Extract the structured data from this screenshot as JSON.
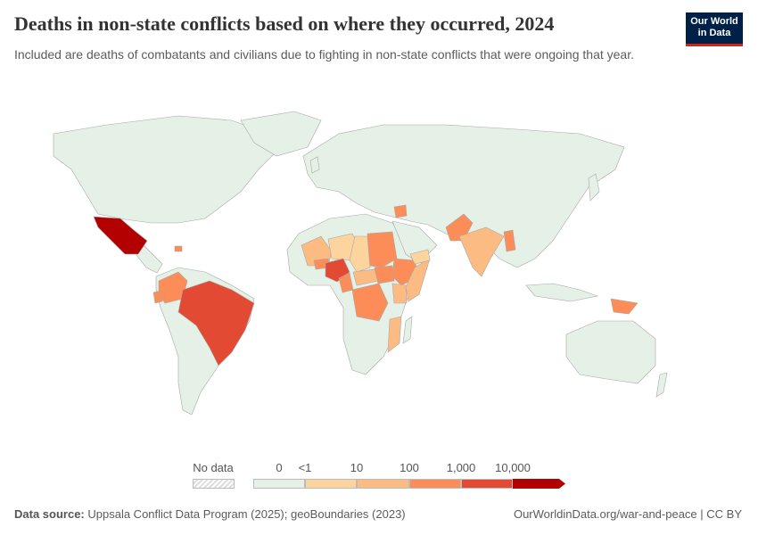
{
  "header": {
    "title": "Deaths in non-state conflicts based on where they occurred, 2024",
    "subtitle": "Included are deaths of combatants and civilians due to fighting in non-state conflicts that were ongoing that year.",
    "logo_text": "Our World in Data"
  },
  "chart_data": {
    "type": "choropleth",
    "year": 2024,
    "legend": {
      "no_data_label": "No data",
      "tick_labels": [
        "0",
        "<1",
        "10",
        "100",
        "1,000",
        "10,000"
      ],
      "bins": [
        {
          "range": "0",
          "color": "#e5f0e6"
        },
        {
          "range": "<1–10",
          "color": "#fdd49e"
        },
        {
          "range": "10–100",
          "color": "#fdbb84"
        },
        {
          "range": "100–1,000",
          "color": "#fc8d59"
        },
        {
          "range": "1,000–10,000",
          "color": "#e34a33"
        },
        {
          "range": ">10,000",
          "color": "#b30000"
        }
      ]
    },
    "country_bins": {
      "Mexico": 5,
      "Brazil": 4,
      "Nigeria": 4,
      "Colombia": 3,
      "Haiti": 3,
      "Sudan": 3,
      "South Sudan": 3,
      "Ethiopia": 3,
      "DR Congo": 3,
      "Pakistan": 3,
      "Syria": 3,
      "Papua New Guinea": 3,
      "Myanmar": 3,
      "Burkina Faso": 3,
      "Cameroon": 3,
      "Mali": 2,
      "Niger": 1,
      "Chad": 1,
      "Central African Republic": 2,
      "Somalia": 2,
      "Kenya": 2,
      "India": 2,
      "Mozambique": 2,
      "Yemen": 1,
      "Ecuador": 3
    }
  },
  "footer": {
    "source_label": "Data source:",
    "source_text": "Uppsala Conflict Data Program (2025); geoBoundaries (2023)",
    "link": "OurWorldinData.org/war-and-peace | CC BY"
  }
}
